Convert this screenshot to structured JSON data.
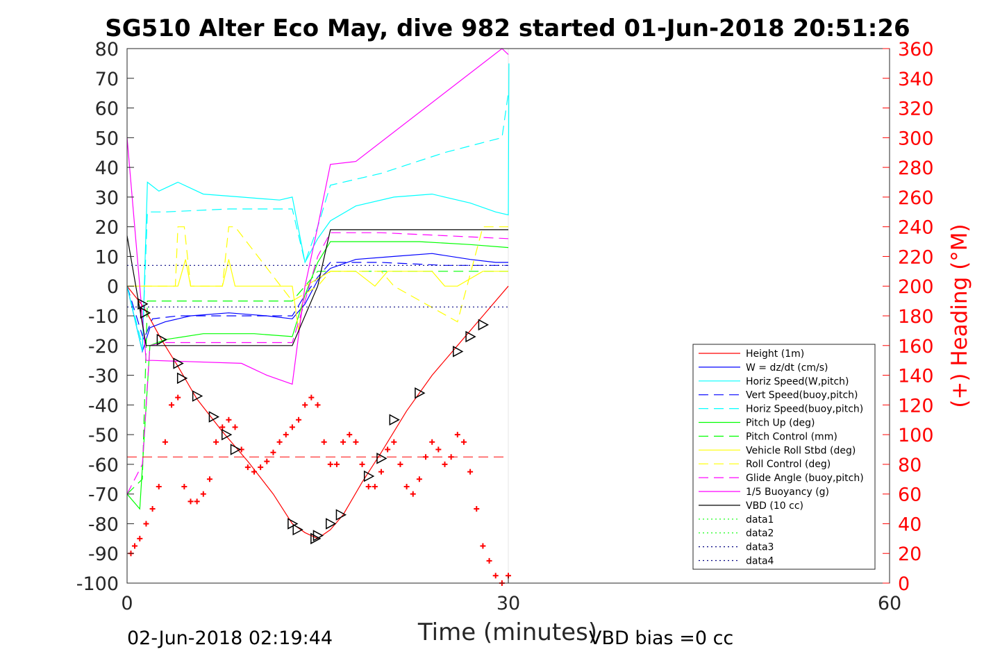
{
  "chart_data": {
    "type": "line",
    "title": "SG510 Alter Eco May, dive 982 started 01-Jun-2018 20:51:26",
    "xlabel": "Time (minutes)",
    "ylabel_right": "(+) Heading (°M)",
    "footer_left": "02-Jun-2018 02:19:44",
    "footer_right": "VBD bias =0 cc",
    "xlim": [
      0,
      60
    ],
    "ylim": [
      -100,
      80
    ],
    "ylim_right": [
      0,
      360
    ],
    "xticks": [
      0,
      30,
      60
    ],
    "yticks": [
      80,
      70,
      60,
      50,
      40,
      30,
      20,
      10,
      0,
      -10,
      -20,
      -30,
      -40,
      -50,
      -60,
      -70,
      -80,
      -90,
      -100
    ],
    "yticks_right": [
      360,
      340,
      320,
      300,
      280,
      260,
      240,
      220,
      200,
      180,
      160,
      140,
      120,
      100,
      80,
      60,
      40,
      20,
      0
    ],
    "grid": "x-only",
    "legend_position": "bottom-right",
    "colors": {
      "red": "#ff0000",
      "blue": "#0000ff",
      "cyan": "#00ffff",
      "green": "#00ff00",
      "yellow": "#ffff00",
      "magenta": "#ff00ff",
      "black": "#000000",
      "darkblue": "#000080"
    },
    "series": [
      {
        "name": "Height (1m)",
        "color": "#ff0000",
        "style": "solid",
        "x": [
          0,
          1.3,
          2.7,
          4,
          5.5,
          7.5,
          9.5,
          11.5,
          13,
          14,
          15,
          16,
          17,
          18.5,
          20,
          22,
          24,
          26,
          28,
          30
        ],
        "y": [
          0,
          -7,
          -18,
          -27,
          -38,
          -49,
          -59,
          -70,
          -80,
          -83,
          -85,
          -82,
          -77,
          -66,
          -56,
          -42,
          -30,
          -20,
          -10,
          0
        ]
      },
      {
        "name": "W = dz/dt (cm/s)",
        "color": "#0000ff",
        "style": "solid",
        "x": [
          0,
          1.2,
          1.8,
          3,
          5,
          8,
          11,
          13,
          14,
          15,
          16,
          18,
          21,
          24,
          27,
          29,
          30
        ],
        "y": [
          0,
          -22,
          -14,
          -12,
          -10,
          -9,
          -10,
          -11,
          -6,
          2,
          6,
          9,
          10,
          11,
          9,
          8,
          8
        ]
      },
      {
        "name": "Horiz Speed(W,pitch)",
        "color": "#00ffff",
        "style": "solid",
        "x": [
          0,
          1.2,
          1.6,
          2.5,
          4,
          6,
          9,
          12,
          13,
          14,
          15,
          16,
          18,
          21,
          24,
          27,
          29,
          30,
          30.05
        ],
        "y": [
          0,
          -22,
          35,
          32,
          35,
          31,
          30,
          29,
          30,
          8,
          16,
          22,
          27,
          30,
          31,
          28,
          25,
          24,
          75
        ]
      },
      {
        "name": "Vert Speed(buoy,pitch)",
        "color": "#0000ff",
        "style": "dashed",
        "x": [
          0,
          1.3,
          2,
          4,
          8,
          13,
          14,
          15,
          16,
          20,
          25,
          30
        ],
        "y": [
          0,
          -18,
          -11,
          -10,
          -10,
          -10,
          -3,
          3,
          8,
          8,
          7,
          7
        ]
      },
      {
        "name": "Horiz Speed(buoy,pitch)",
        "color": "#00ffff",
        "style": "dashed",
        "x": [
          0,
          1.2,
          1.6,
          3,
          8,
          13,
          14,
          15,
          16,
          20,
          25,
          29.5,
          30
        ],
        "y": [
          0,
          -20,
          25,
          25,
          26,
          26,
          8,
          20,
          34,
          38,
          45,
          50,
          65
        ]
      },
      {
        "name": "Pitch Up (deg)",
        "color": "#00ff00",
        "style": "solid",
        "x": [
          0,
          1,
          1.8,
          3,
          6,
          10,
          13,
          14,
          15,
          16,
          19,
          23,
          27,
          30
        ],
        "y": [
          -70,
          -75,
          -20,
          -18,
          -16,
          -16,
          -17,
          -3,
          8,
          15,
          15,
          15,
          14,
          13
        ]
      },
      {
        "name": "Pitch Control (mm)",
        "color": "#00ff00",
        "style": "dashed",
        "x": [
          0,
          1.2,
          1.6,
          3,
          13,
          14,
          15,
          30
        ],
        "y": [
          -70,
          -65,
          -5,
          -5,
          -5,
          0,
          5,
          5
        ]
      },
      {
        "name": "Vehicle Roll Stbd (deg)",
        "color": "#ffff00",
        "style": "solid",
        "x": [
          0,
          4,
          4.6,
          5,
          7.5,
          8,
          8.5,
          13,
          13.5,
          14,
          16,
          18,
          19.5,
          20.5,
          24,
          25,
          26,
          28,
          30
        ],
        "y": [
          0,
          0,
          9,
          0,
          0,
          9,
          0,
          0,
          -15,
          0,
          5,
          5,
          0,
          5,
          5,
          0,
          0,
          5,
          5
        ]
      },
      {
        "name": "Roll Control (deg)",
        "color": "#ffff00",
        "style": "dashed",
        "x": [
          0,
          3.8,
          4,
          4.5,
          5,
          7.5,
          8,
          8.5,
          13,
          15,
          16,
          20,
          21,
          26,
          28,
          30
        ],
        "y": [
          0,
          0,
          20,
          20,
          0,
          0,
          20,
          20,
          -5,
          0,
          5,
          5,
          0,
          -12,
          20,
          20
        ]
      },
      {
        "name": "Glide Angle (buoy,pitch)",
        "color": "#ff00ff",
        "style": "dashed",
        "x": [
          0,
          1.2,
          1.8,
          3,
          8,
          13,
          14,
          15,
          16,
          20,
          25,
          30
        ],
        "y": [
          -70,
          -60,
          -20,
          -19,
          -19,
          -19,
          -5,
          10,
          18,
          18,
          17,
          16
        ]
      },
      {
        "name": "1/5 Buoyancy (g)",
        "color": "#ff00ff",
        "style": "solid",
        "x": [
          0,
          1.5,
          2,
          9,
          11,
          13,
          14,
          15,
          16,
          18,
          29.5,
          30
        ],
        "y": [
          50,
          -25,
          -25,
          -26,
          -30,
          -33,
          0,
          20,
          41,
          42,
          80,
          78
        ]
      },
      {
        "name": "VBD (10 cc)",
        "color": "#000000",
        "style": "solid",
        "x": [
          0,
          1.5,
          13,
          15,
          16,
          30
        ],
        "y": [
          17,
          -20,
          -20,
          0,
          19,
          19
        ]
      },
      {
        "name": "data1",
        "color": "#00ff00",
        "style": "dotted",
        "x": [],
        "y": []
      },
      {
        "name": "data2",
        "color": "#00ff00",
        "style": "dotted",
        "x": [],
        "y": []
      },
      {
        "name": "data3",
        "color": "#000080",
        "style": "dotted",
        "x": [
          0,
          30
        ],
        "y": [
          7,
          7
        ]
      },
      {
        "name": "data4",
        "color": "#000080",
        "style": "dotted",
        "x": [
          0,
          30
        ],
        "y": [
          -7,
          -7
        ]
      }
    ],
    "heading_series": {
      "axis": "right",
      "marker": "+",
      "color": "#ff0000",
      "x": [
        0.3,
        0.6,
        1.0,
        1.5,
        2,
        2.5,
        3,
        3.5,
        4,
        4.5,
        5,
        5.5,
        6,
        6.5,
        7,
        7.5,
        8,
        8.5,
        9,
        9.5,
        10,
        10.5,
        11,
        11.5,
        12,
        12.5,
        13,
        13.5,
        14,
        14.5,
        15,
        15.5,
        16,
        16.5,
        17,
        17.5,
        18,
        18.5,
        19,
        19.5,
        20,
        20.5,
        21,
        21.5,
        22,
        22.5,
        23,
        23.5,
        24,
        24.5,
        25,
        25.5,
        26,
        26.5,
        27,
        27.5,
        28,
        28.5,
        29,
        29.5,
        30
      ],
      "y": [
        20,
        25,
        30,
        40,
        50,
        65,
        95,
        120,
        125,
        65,
        55,
        55,
        60,
        70,
        95,
        105,
        110,
        105,
        90,
        78,
        75,
        78,
        82,
        88,
        95,
        100,
        105,
        110,
        120,
        125,
        120,
        95,
        80,
        80,
        95,
        100,
        95,
        80,
        65,
        65,
        75,
        90,
        95,
        80,
        65,
        60,
        70,
        85,
        95,
        90,
        80,
        85,
        100,
        95,
        75,
        50,
        25,
        15,
        5,
        0,
        5
      ]
    },
    "heading_hline": {
      "y_right": 85,
      "color": "#ff0000",
      "style": "dashed"
    },
    "triangle_markers": {
      "color": "#000000",
      "x": [
        1.2,
        1.4,
        2.7,
        4,
        4.3,
        5.5,
        6.8,
        7.8,
        8.5,
        13,
        13.4,
        14.8,
        15,
        16,
        16.8,
        19,
        20,
        21,
        23,
        26,
        27,
        28
      ],
      "y": [
        -6,
        -9,
        -18,
        -26,
        -31,
        -37,
        -44,
        -50,
        -55,
        -80,
        -82,
        -85,
        -84,
        -80,
        -77,
        -64,
        -58,
        -45,
        -36,
        -22,
        -17,
        -13
      ]
    },
    "legend": [
      "Height (1m)",
      "W = dz/dt (cm/s)",
      "Horiz Speed(W,pitch)",
      "Vert Speed(buoy,pitch)",
      "Horiz Speed(buoy,pitch)",
      "Pitch Up (deg)",
      "Pitch Control (mm)",
      "Vehicle Roll Stbd (deg)",
      "Roll Control (deg)",
      "Glide Angle (buoy,pitch)",
      "1/5 Buoyancy (g)",
      "VBD (10 cc)",
      "data1",
      "data2",
      "data3",
      "data4"
    ]
  }
}
